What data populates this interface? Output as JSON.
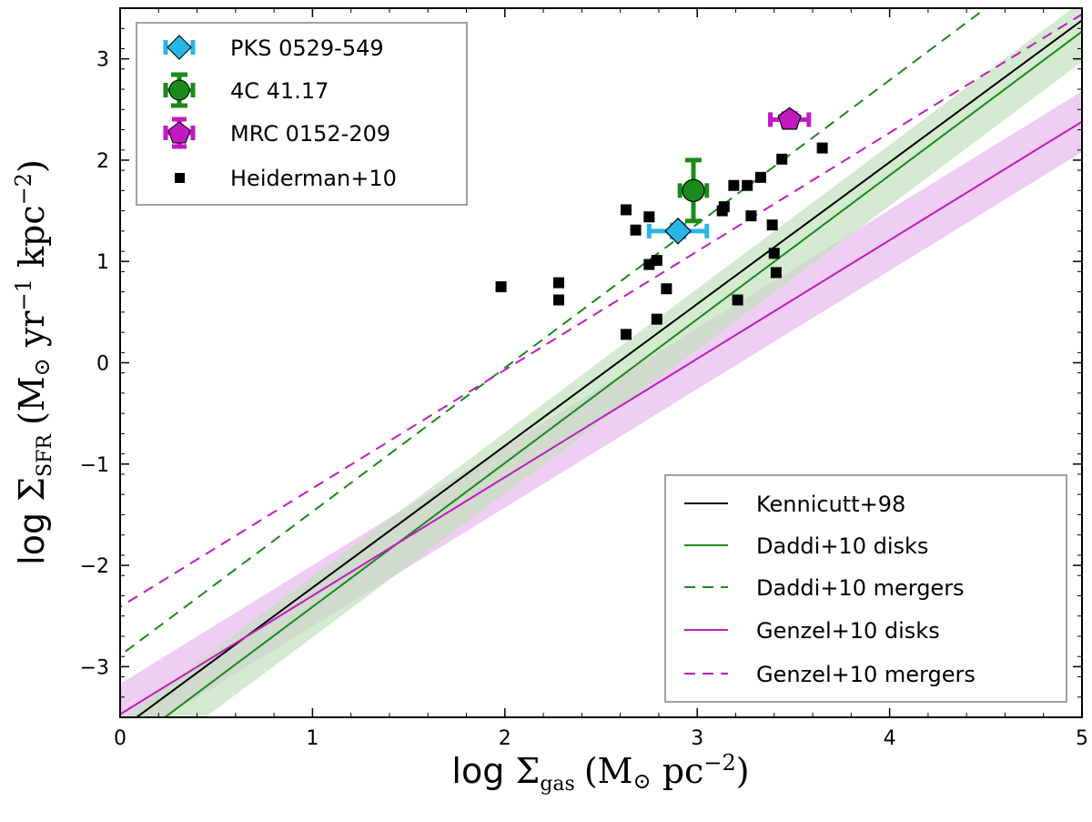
{
  "chart_data": {
    "type": "scatter",
    "xlabel_prefix": "log ",
    "xlabel_symbol": "Σ",
    "xlabel_sub": "gas",
    "xlabel_units": "(M",
    "xlabel_units_sun": "⊙",
    "xlabel_units_rest": " pc",
    "xlabel_units_exp": "−2",
    "xlabel_units_close": ")",
    "ylabel_prefix": "log ",
    "ylabel_symbol": "Σ",
    "ylabel_sub": "SFR",
    "ylabel_units": "(M",
    "ylabel_units_sun": "⊙",
    "ylabel_units_yr": " yr",
    "ylabel_units_yr_exp": "−1",
    "ylabel_units_kpc": " kpc",
    "ylabel_units_kpc_exp": "−2",
    "ylabel_units_close": ")",
    "xlim": [
      0,
      5
    ],
    "ylim": [
      -3.5,
      3.5
    ],
    "xticks": [
      0,
      1,
      2,
      3,
      4,
      5
    ],
    "xtick_labels": [
      "0",
      "1",
      "2",
      "3",
      "4",
      "5"
    ],
    "yticks": [
      -3,
      -2,
      -1,
      0,
      1,
      2,
      3
    ],
    "ytick_labels": [
      "−3",
      "−2",
      "−1",
      "0",
      "1",
      "2",
      "3"
    ],
    "bands": [
      {
        "name": "Genzel+10 disks scatter",
        "color": "#e7b4ec",
        "slope": 1.17,
        "intercept": -3.47,
        "halfwidth": 0.3
      },
      {
        "name": "Daddi+10 disks scatter",
        "color": "#bfe0b8",
        "slope": 1.42,
        "intercept": -3.83,
        "halfwidth": 0.3
      }
    ],
    "lines": [
      {
        "name": "Kennicutt+98",
        "color": "#000000",
        "dash": "",
        "slope": 1.4,
        "intercept": -3.62
      },
      {
        "name": "Daddi+10 disks",
        "color": "#1a8a1a",
        "dash": "",
        "slope": 1.42,
        "intercept": -3.83
      },
      {
        "name": "Daddi+10 mergers",
        "color": "#1a8a1a",
        "dash": "12,8",
        "slope": 1.42,
        "intercept": -2.89
      },
      {
        "name": "Genzel+10 disks",
        "color": "#c21ac2",
        "dash": "",
        "slope": 1.17,
        "intercept": -3.47
      },
      {
        "name": "Genzel+10 mergers",
        "color": "#c21ac2",
        "dash": "12,8",
        "slope": 1.17,
        "intercept": -2.41
      }
    ],
    "heiderman": {
      "name": "Heiderman+10",
      "points": [
        {
          "x": 1.98,
          "y": 0.75
        },
        {
          "x": 2.28,
          "y": 0.79
        },
        {
          "x": 2.28,
          "y": 0.62
        },
        {
          "x": 2.63,
          "y": 1.51
        },
        {
          "x": 2.63,
          "y": 0.28
        },
        {
          "x": 2.68,
          "y": 1.31
        },
        {
          "x": 2.75,
          "y": 1.44
        },
        {
          "x": 2.75,
          "y": 0.97
        },
        {
          "x": 2.79,
          "y": 1.01
        },
        {
          "x": 2.79,
          "y": 0.43
        },
        {
          "x": 2.84,
          "y": 0.73
        },
        {
          "x": 3.13,
          "y": 1.5
        },
        {
          "x": 3.14,
          "y": 1.54
        },
        {
          "x": 3.19,
          "y": 1.75
        },
        {
          "x": 3.21,
          "y": 0.62
        },
        {
          "x": 3.26,
          "y": 1.75
        },
        {
          "x": 3.28,
          "y": 1.45
        },
        {
          "x": 3.33,
          "y": 1.83
        },
        {
          "x": 3.39,
          "y": 1.36
        },
        {
          "x": 3.4,
          "y": 1.08
        },
        {
          "x": 3.41,
          "y": 0.89
        },
        {
          "x": 3.44,
          "y": 2.01
        },
        {
          "x": 3.65,
          "y": 2.12
        }
      ]
    },
    "sources": [
      {
        "name": "PKS 0529-549",
        "x": 2.9,
        "y": 1.3,
        "xerr": 0.15,
        "yerr": 0.06,
        "marker": "diamond",
        "color": "#29b6e6",
        "errcolor": "#29b6e6"
      },
      {
        "name": "4C 41.17",
        "x": 2.98,
        "y": 1.7,
        "xerr": 0.07,
        "yerr": 0.3,
        "marker": "circle",
        "color": "#1a8a1a",
        "errcolor": "#1a8a1a"
      },
      {
        "name": "MRC 0152-209",
        "x": 3.48,
        "y": 2.4,
        "xerr": 0.1,
        "yerr": 0.06,
        "marker": "pentagon",
        "color": "#c21ac2",
        "errcolor": "#c21ac2"
      }
    ],
    "legend_upper": [
      "PKS 0529-549",
      "4C 41.17",
      "MRC 0152-209",
      "Heiderman+10"
    ],
    "legend_upper_loc": "upper-left",
    "legend_lower": [
      "Kennicutt+98",
      "Daddi+10 disks",
      "Daddi+10 mergers",
      "Genzel+10 disks",
      "Genzel+10 mergers"
    ],
    "legend_lower_loc": "lower-right"
  }
}
